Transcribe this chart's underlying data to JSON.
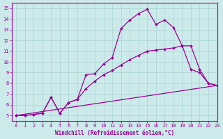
{
  "xlabel": "Windchill (Refroidissement éolien,°C)",
  "ylabel": "",
  "bg_color": "#cceaea",
  "line_color": "#990099",
  "xlim": [
    -0.5,
    23
  ],
  "ylim": [
    4.5,
    15.5
  ],
  "xticks": [
    0,
    1,
    2,
    3,
    4,
    5,
    6,
    7,
    8,
    9,
    10,
    11,
    12,
    13,
    14,
    15,
    16,
    17,
    18,
    19,
    20,
    21,
    22,
    23
  ],
  "yticks": [
    5,
    6,
    7,
    8,
    9,
    10,
    11,
    12,
    13,
    14,
    15
  ],
  "series": [
    {
      "x": [
        0,
        23
      ],
      "y": [
        5.0,
        7.8
      ]
    },
    {
      "x": [
        0,
        1,
        2,
        3,
        4,
        5,
        6,
        7,
        8,
        9,
        10,
        11,
        12,
        13,
        14,
        15,
        16,
        17,
        18,
        19,
        20,
        21,
        22,
        23
      ],
      "y": [
        5.0,
        5.0,
        5.1,
        5.2,
        6.7,
        5.2,
        6.2,
        6.5,
        8.8,
        8.9,
        9.8,
        10.4,
        13.1,
        13.9,
        14.5,
        14.9,
        13.5,
        13.9,
        13.2,
        11.5,
        9.3,
        9.0,
        8.0,
        7.8
      ]
    },
    {
      "x": [
        0,
        1,
        2,
        3,
        4,
        5,
        6,
        7,
        8,
        9,
        10,
        11,
        12,
        13,
        14,
        15,
        16,
        17,
        18,
        19,
        20,
        21,
        22,
        23
      ],
      "y": [
        5.0,
        5.0,
        5.1,
        5.2,
        6.7,
        5.2,
        6.2,
        6.5,
        7.5,
        8.2,
        8.8,
        9.2,
        9.7,
        10.2,
        10.6,
        11.0,
        11.1,
        11.2,
        11.3,
        11.5,
        11.5,
        9.3,
        8.0,
        7.8
      ]
    }
  ]
}
